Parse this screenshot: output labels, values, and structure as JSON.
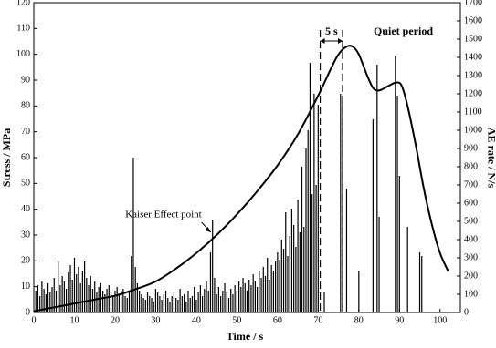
{
  "chart_data": {
    "type": "combo",
    "xlabel": "Time / s",
    "ylabel": "Stress / MPa",
    "y2label": "AE rate / N/s",
    "xlim": [
      0,
      105
    ],
    "xticks": [
      0,
      10,
      20,
      30,
      40,
      50,
      60,
      70,
      80,
      90,
      100
    ],
    "ylim": [
      0,
      120
    ],
    "yticks": [
      0,
      10,
      20,
      30,
      40,
      50,
      60,
      70,
      80,
      90,
      100,
      110,
      120
    ],
    "y2lim": [
      0,
      1700
    ],
    "y2ticks": [
      0,
      100,
      200,
      300,
      400,
      500,
      600,
      700,
      800,
      900,
      1000,
      1100,
      1200,
      1300,
      1400,
      1500,
      1600,
      1700
    ],
    "series": [
      {
        "type": "bar",
        "axis": "y2",
        "color": "#000000",
        "x": [
          0.5,
          1,
          1.5,
          2,
          2.5,
          3,
          3.5,
          4,
          4.5,
          5,
          5.5,
          6,
          6.5,
          7,
          7.5,
          8,
          8.5,
          9,
          9.5,
          10,
          10.5,
          11,
          11.5,
          12,
          12.5,
          13,
          13.5,
          14,
          14.5,
          15,
          15.5,
          16,
          16.5,
          17,
          17.5,
          18,
          18.5,
          19,
          19.5,
          20,
          20.5,
          21,
          21.5,
          22,
          22.5,
          23,
          23.5,
          24,
          24.5,
          25,
          25.5,
          26,
          26.5,
          27,
          27.5,
          28,
          28.5,
          29,
          29.5,
          30,
          30.5,
          31,
          31.5,
          32,
          32.5,
          33,
          33.5,
          34,
          34.5,
          35,
          35.5,
          36,
          36.5,
          37,
          37.5,
          38,
          38.5,
          39,
          39.5,
          40,
          40.5,
          41,
          41.5,
          42,
          42.5,
          43,
          43.5,
          44,
          44.5,
          45,
          45.5,
          46,
          46.5,
          47,
          47.5,
          48,
          48.5,
          49,
          49.5,
          50,
          50.5,
          51,
          51.5,
          52,
          52.5,
          53,
          53.5,
          54,
          54.5,
          55,
          55.5,
          56,
          56.5,
          57,
          57.5,
          58,
          58.5,
          59,
          59.5,
          60,
          60.5,
          61,
          61.5,
          62,
          62.5,
          63,
          63.5,
          64,
          64.5,
          65,
          65.5,
          66,
          66.5,
          67,
          67.5,
          68,
          68.5,
          69,
          69.5,
          70,
          71.5,
          75.5,
          76,
          77,
          80,
          83.5,
          84.5,
          85,
          89,
          89.5,
          90,
          92,
          95,
          95.5
        ],
        "values": [
          120,
          150,
          90,
          170,
          130,
          100,
          160,
          110,
          140,
          190,
          120,
          280,
          150,
          200,
          170,
          130,
          220,
          260,
          180,
          300,
          210,
          250,
          160,
          230,
          280,
          190,
          150,
          200,
          130,
          170,
          110,
          140,
          160,
          120,
          100,
          130,
          150,
          110,
          90,
          120,
          140,
          100,
          120,
          130,
          90,
          80,
          110,
          310,
          850,
          250,
          160,
          120,
          100,
          80,
          70,
          110,
          90,
          80,
          60,
          130,
          110,
          90,
          70,
          100,
          120,
          80,
          60,
          90,
          110,
          80,
          70,
          130,
          90,
          100,
          60,
          120,
          80,
          90,
          140,
          70,
          110,
          150,
          90,
          130,
          170,
          120,
          330,
          510,
          190,
          100,
          140,
          90,
          120,
          160,
          110,
          80,
          130,
          100,
          150,
          120,
          170,
          140,
          190,
          160,
          120,
          180,
          150,
          210,
          170,
          140,
          230,
          190,
          250,
          200,
          300,
          180,
          260,
          230,
          280,
          330,
          290,
          400,
          350,
          550,
          310,
          420,
          570,
          480,
          360,
          620,
          440,
          800,
          470,
          900,
          1000,
          1370,
          650,
          1200,
          700,
          1140,
          115,
          1200,
          1160,
          680,
          230,
          1060,
          1360,
          525,
          1410,
          1190,
          750,
          470,
          330,
          310
        ]
      },
      {
        "type": "line",
        "axis": "y",
        "color": "#000000",
        "x": [
          0,
          5,
          10,
          15,
          20,
          25,
          30,
          35,
          40,
          45,
          50,
          55,
          60,
          65,
          70,
          73,
          75,
          77,
          78.5,
          80,
          82,
          83.5,
          85,
          87,
          89,
          90.5,
          92,
          94,
          96,
          98,
          100,
          102
        ],
        "values": [
          0.5,
          2,
          3.5,
          5,
          6.5,
          9,
          12,
          17,
          23,
          30,
          38,
          47,
          57,
          69,
          84,
          94,
          100,
          103,
          103,
          100,
          92,
          87,
          86,
          87.5,
          89,
          88,
          80,
          65,
          48,
          34,
          23,
          16
        ]
      }
    ],
    "kaiser": {
      "text": "Kaiser Effect point",
      "x": 44,
      "y": 30
    },
    "quiet_period": {
      "label": "Quiet period",
      "interval_label": "5 s",
      "x": [
        70.5,
        76
      ]
    }
  }
}
